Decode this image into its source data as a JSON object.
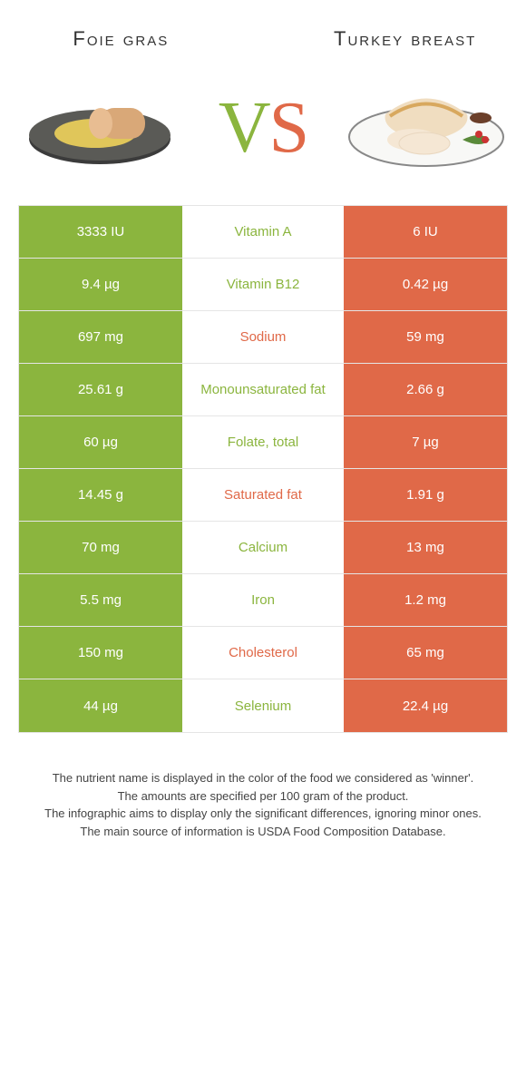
{
  "colors": {
    "green": "#8bb53e",
    "orange": "#e06948",
    "row_border": "#e5e5e5",
    "text": "#333333"
  },
  "header": {
    "left_title": "Foie gras",
    "right_title": "Turkey breast",
    "vs_left": "V",
    "vs_right": "S"
  },
  "table": {
    "left_color": "#8bb53e",
    "right_color": "#e06948",
    "rows": [
      {
        "left": "3333 IU",
        "label": "Vitamin A",
        "right": "6 IU",
        "winner": "left"
      },
      {
        "left": "9.4 µg",
        "label": "Vitamin B12",
        "right": "0.42 µg",
        "winner": "left"
      },
      {
        "left": "697 mg",
        "label": "Sodium",
        "right": "59 mg",
        "winner": "right"
      },
      {
        "left": "25.61 g",
        "label": "Monounsaturated fat",
        "right": "2.66 g",
        "winner": "left"
      },
      {
        "left": "60 µg",
        "label": "Folate, total",
        "right": "7 µg",
        "winner": "left"
      },
      {
        "left": "14.45 g",
        "label": "Saturated fat",
        "right": "1.91 g",
        "winner": "right"
      },
      {
        "left": "70 mg",
        "label": "Calcium",
        "right": "13 mg",
        "winner": "left"
      },
      {
        "left": "5.5 mg",
        "label": "Iron",
        "right": "1.2 mg",
        "winner": "left"
      },
      {
        "left": "150 mg",
        "label": "Cholesterol",
        "right": "65 mg",
        "winner": "right"
      },
      {
        "left": "44 µg",
        "label": "Selenium",
        "right": "22.4 µg",
        "winner": "left"
      }
    ]
  },
  "footnotes": [
    "The nutrient name is displayed in the color of the food we considered as 'winner'.",
    "The amounts are specified per 100 gram of the product.",
    "The infographic aims to display only the significant differences, ignoring minor ones.",
    "The main source of information is USDA Food Composition Database."
  ]
}
